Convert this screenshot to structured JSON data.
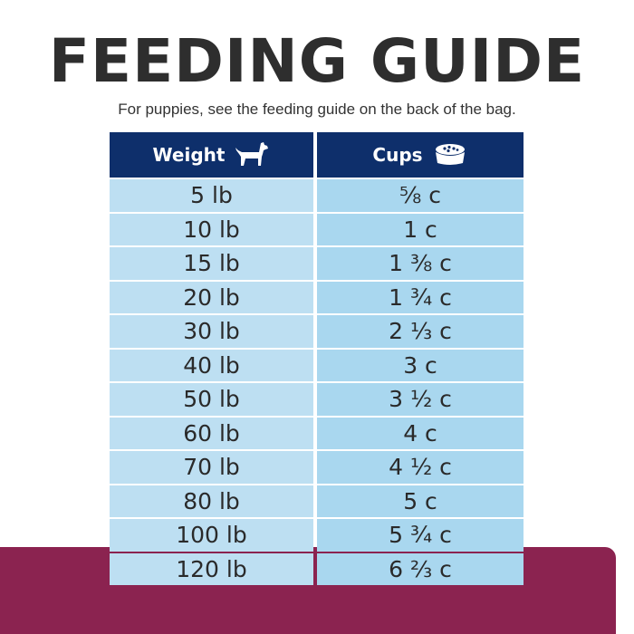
{
  "title": "FEEDING GUIDE",
  "subtitle": "For puppies, see the feeding guide on the back of the bag.",
  "header": {
    "weight_label": "Weight",
    "cups_label": "Cups",
    "weight_icon": "dog-icon",
    "cups_icon": "food-bowl-icon"
  },
  "rows": [
    {
      "weight": "5 lb",
      "cups": "⅝ c"
    },
    {
      "weight": "10 lb",
      "cups": "1 c"
    },
    {
      "weight": "15 lb",
      "cups": "1 ⅜ c"
    },
    {
      "weight": "20 lb",
      "cups": "1 ¾ c"
    },
    {
      "weight": "30 lb",
      "cups": "2 ⅓ c"
    },
    {
      "weight": "40 lb",
      "cups": "3 c"
    },
    {
      "weight": "50 lb",
      "cups": "3 ½ c"
    },
    {
      "weight": "60 lb",
      "cups": "4 c"
    },
    {
      "weight": "70 lb",
      "cups": "4 ½ c"
    },
    {
      "weight": "80 lb",
      "cups": "5 c"
    },
    {
      "weight": "100 lb",
      "cups": "5 ¾ c"
    },
    {
      "weight": "120 lb",
      "cups": "6 ⅔ c"
    }
  ],
  "colors": {
    "header_bg": "#0e2f6b",
    "weight_cell": "#bddff2",
    "cups_cell": "#a9d7ef",
    "band": "#8b2350"
  }
}
